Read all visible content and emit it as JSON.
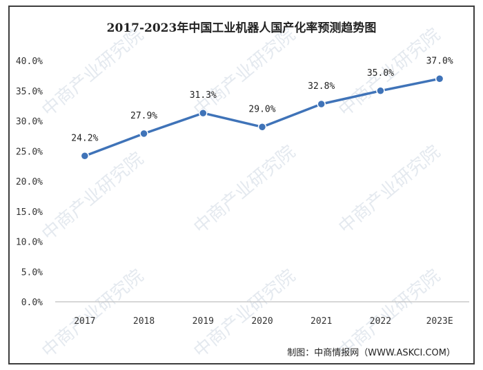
{
  "chart_data": {
    "type": "line",
    "title": "2017-2023年中国工业机器人国产化率预测趋势图",
    "categories": [
      "2017",
      "2018",
      "2019",
      "2020",
      "2021",
      "2022",
      "2023E"
    ],
    "values": [
      24.2,
      27.9,
      31.3,
      29.0,
      32.8,
      35.0,
      37.0
    ],
    "data_labels": [
      "24.2%",
      "27.9%",
      "31.3%",
      "29.0%",
      "32.8%",
      "35.0%",
      "37.0%"
    ],
    "y_ticks": [
      "0.0%",
      "5.0%",
      "10.0%",
      "15.0%",
      "20.0%",
      "25.0%",
      "30.0%",
      "35.0%",
      "40.0%"
    ],
    "ylim": [
      0,
      40
    ],
    "grid": false,
    "xlabel": "",
    "ylabel": ""
  },
  "source": "制图：中商情报网（WWW.ASKCI.COM）",
  "watermark": "中商产业研究院",
  "colors": {
    "line": "#3f73b8",
    "marker": "#3f73b8",
    "axis": "#bfbfbf",
    "watermark": "#cfd8e3"
  }
}
